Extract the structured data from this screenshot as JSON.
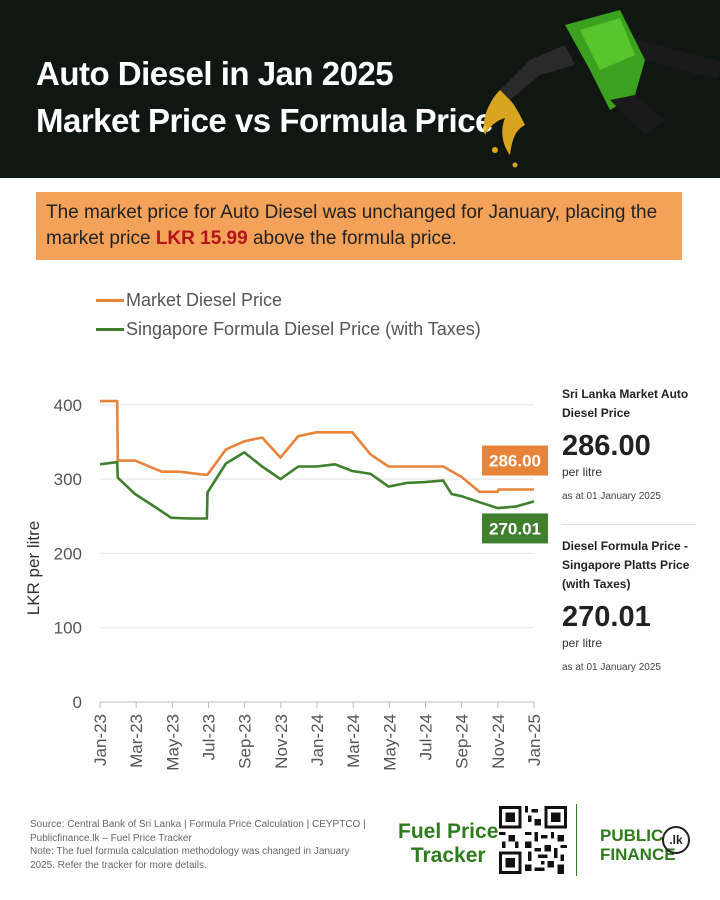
{
  "header": {
    "title_line1": "Auto Diesel in Jan 2025",
    "title_line2": "Market Price vs Formula Price",
    "background": "#101712"
  },
  "summary": {
    "before": "The market price for Auto Diesel was unchanged for January, placing the market price ",
    "highlight": "LKR 15.99",
    "after": " above the formula price.",
    "background": "#f4a25a",
    "highlight_color": "#b3131b"
  },
  "chart_data": {
    "type": "line",
    "title": "",
    "ylabel": "LKR per litre",
    "xlabel": "",
    "ylim": [
      0,
      420
    ],
    "yticks": [
      0,
      100,
      200,
      300,
      400
    ],
    "xticks": [
      "Jan-23",
      "Mar-23",
      "May-23",
      "Jul-23",
      "Sep-23",
      "Nov-23",
      "Jan-24",
      "Mar-24",
      "May-24",
      "Jul-24",
      "Sep-24",
      "Nov-24",
      "Jan-25"
    ],
    "grid": true,
    "legend_position": "top-left",
    "series": [
      {
        "name": "Market Diesel Price",
        "color": "#e8833a",
        "points": [
          [
            "2023-01-01",
            405
          ],
          [
            "2023-01-30",
            405
          ],
          [
            "2023-01-31",
            325
          ],
          [
            "2023-03-01",
            325
          ],
          [
            "2023-04-15",
            310
          ],
          [
            "2023-05-15",
            310
          ],
          [
            "2023-06-25",
            306
          ],
          [
            "2023-07-01",
            306
          ],
          [
            "2023-08-01",
            340
          ],
          [
            "2023-09-01",
            351
          ],
          [
            "2023-10-01",
            356
          ],
          [
            "2023-11-01",
            329
          ],
          [
            "2023-12-01",
            358
          ],
          [
            "2024-01-01",
            363
          ],
          [
            "2024-02-01",
            363
          ],
          [
            "2024-03-01",
            363
          ],
          [
            "2024-04-01",
            333
          ],
          [
            "2024-05-01",
            317
          ],
          [
            "2024-06-01",
            317
          ],
          [
            "2024-07-01",
            317
          ],
          [
            "2024-08-01",
            317
          ],
          [
            "2024-09-01",
            303
          ],
          [
            "2024-10-01",
            283
          ],
          [
            "2024-11-01",
            283
          ],
          [
            "2024-11-02",
            286
          ],
          [
            "2024-12-01",
            286
          ],
          [
            "2025-01-01",
            286
          ]
        ]
      },
      {
        "name": "Singapore Formula Diesel Price (with Taxes)",
        "color": "#3f7f2e",
        "points": [
          [
            "2023-01-01",
            320
          ],
          [
            "2023-01-30",
            323
          ],
          [
            "2023-01-31",
            302
          ],
          [
            "2023-03-01",
            280
          ],
          [
            "2023-04-01",
            264
          ],
          [
            "2023-05-01",
            248
          ],
          [
            "2023-06-01",
            247
          ],
          [
            "2023-06-30",
            247
          ],
          [
            "2023-07-01",
            282
          ],
          [
            "2023-08-01",
            321
          ],
          [
            "2023-09-01",
            336
          ],
          [
            "2023-10-01",
            317
          ],
          [
            "2023-11-01",
            300
          ],
          [
            "2023-12-01",
            317
          ],
          [
            "2024-01-01",
            317
          ],
          [
            "2024-02-01",
            320
          ],
          [
            "2024-03-01",
            311
          ],
          [
            "2024-04-01",
            307
          ],
          [
            "2024-05-01",
            290
          ],
          [
            "2024-06-01",
            295
          ],
          [
            "2024-07-01",
            296
          ],
          [
            "2024-08-01",
            298
          ],
          [
            "2024-08-15",
            280
          ],
          [
            "2024-09-01",
            277
          ],
          [
            "2024-10-01",
            269
          ],
          [
            "2024-11-01",
            261
          ],
          [
            "2024-12-01",
            263
          ],
          [
            "2025-01-01",
            270
          ]
        ]
      }
    ],
    "annotations": [
      {
        "series": "Market Diesel Price",
        "label": "286.00",
        "color": "#e8833a"
      },
      {
        "series": "Singapore Formula Diesel Price (with Taxes)",
        "label": "270.01",
        "color": "#3f7f2e"
      }
    ]
  },
  "sidebar": {
    "market": {
      "label": "Sri Lanka Market Auto Diesel Price",
      "value": "286.00",
      "unit": "per litre",
      "as_at": "as at 01 January 2025"
    },
    "formula": {
      "label": "Diesel Formula Price - Singapore Platts Price (with Taxes)",
      "value": "270.01",
      "unit": "per litre",
      "as_at": "as at 01 January 2025"
    }
  },
  "footer": {
    "source1": "Source: Central Bank of Sri Lanka | Formula Price Calculation | CEYPTCO | Publicfinance.lk – Fuel Price Tracker",
    "source2": "Note: The fuel formula calculation methodology was changed in January 2025. Refer the tracker for more details.",
    "tracker_line1": "Fuel Price",
    "tracker_line2": "Tracker",
    "pf_line1": "PUBLIC",
    "pf_line2": "FINANCE",
    "pf_logo": ".lk"
  }
}
